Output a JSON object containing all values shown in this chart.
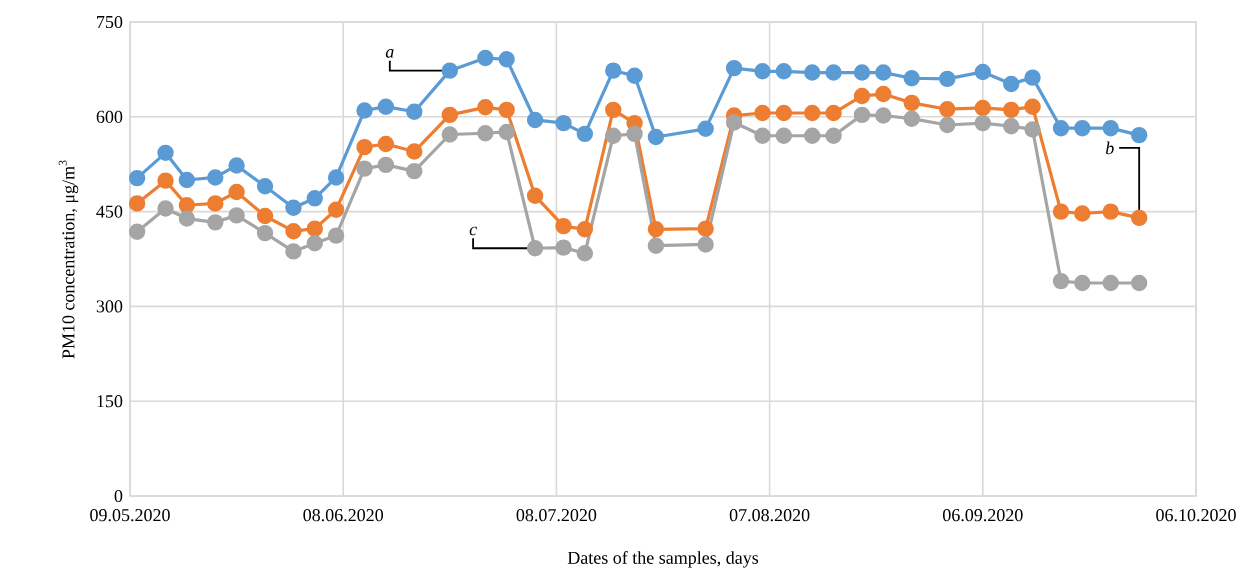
{
  "chart_data": {
    "type": "line",
    "xlabel": "Dates of the samples, days",
    "ylabel": "PM10 concentration, μg/m$^{3}$",
    "x": [
      "2020-05-10",
      "2020-05-14",
      "2020-05-17",
      "2020-05-21",
      "2020-05-24",
      "2020-05-28",
      "2020-06-01",
      "2020-06-04",
      "2020-06-07",
      "2020-06-11",
      "2020-06-14",
      "2020-06-18",
      "2020-06-23",
      "2020-06-28",
      "2020-07-01",
      "2020-07-05",
      "2020-07-09",
      "2020-07-12",
      "2020-07-16",
      "2020-07-19",
      "2020-07-22",
      "2020-07-29",
      "2020-08-02",
      "2020-08-06",
      "2020-08-09",
      "2020-08-13",
      "2020-08-16",
      "2020-08-20",
      "2020-08-23",
      "2020-08-27",
      "2020-09-01",
      "2020-09-06",
      "2020-09-10",
      "2020-09-13",
      "2020-09-17",
      "2020-09-20",
      "2020-09-24",
      "2020-09-28"
    ],
    "series": [
      {
        "color": "#5b9bd5",
        "values": [
          503,
          543,
          500,
          504,
          523,
          490,
          456,
          471,
          504,
          610,
          616,
          608,
          673,
          693,
          691,
          595,
          590,
          573,
          673,
          665,
          568,
          581,
          677,
          672,
          672,
          670,
          670,
          670,
          670,
          661,
          660,
          671,
          652,
          662,
          582,
          582,
          582,
          571
        ]
      },
      {
        "color": "#ed7d31",
        "values": [
          463,
          499,
          460,
          463,
          481,
          443,
          419,
          423,
          453,
          552,
          557,
          545,
          603,
          615,
          611,
          475,
          427,
          422,
          611,
          590,
          422,
          423,
          602,
          606,
          606,
          606,
          606,
          633,
          636,
          622,
          612,
          614,
          611,
          616,
          450,
          447,
          450,
          440
        ]
      },
      {
        "color": "#a5a5a5",
        "values": [
          418,
          455,
          439,
          433,
          444,
          416,
          387,
          400,
          412,
          518,
          524,
          514,
          572,
          574,
          576,
          392,
          393,
          384,
          570,
          573,
          396,
          398,
          591,
          570,
          570,
          570,
          570,
          603,
          602,
          597,
          587,
          590,
          585,
          580,
          340,
          337,
          337,
          337
        ]
      }
    ],
    "xlim": [
      "2020-05-09",
      "2020-10-06"
    ],
    "xticks": [
      {
        "value": "2020-05-09",
        "label": "09.05.2020"
      },
      {
        "value": "2020-06-08",
        "label": "08.06.2020"
      },
      {
        "value": "2020-07-08",
        "label": "08.07.2020"
      },
      {
        "value": "2020-08-07",
        "label": "07.08.2020"
      },
      {
        "value": "2020-09-06",
        "label": "06.09.2020"
      },
      {
        "value": "2020-10-06",
        "label": "06.10.2020"
      }
    ],
    "ylim": [
      0,
      750
    ],
    "yticks": [
      0,
      150,
      300,
      450,
      600,
      750
    ],
    "grid": true,
    "marker": "circle",
    "line_style": "solid",
    "legend": false,
    "annotations": [
      {
        "text": "*a*",
        "x": "2020-06-23",
        "y": 673
      },
      {
        "text": "*c*",
        "x": "2020-07-05",
        "y": 392
      },
      {
        "text": "*b*",
        "x": "2020-09-28",
        "y": 440
      }
    ]
  }
}
